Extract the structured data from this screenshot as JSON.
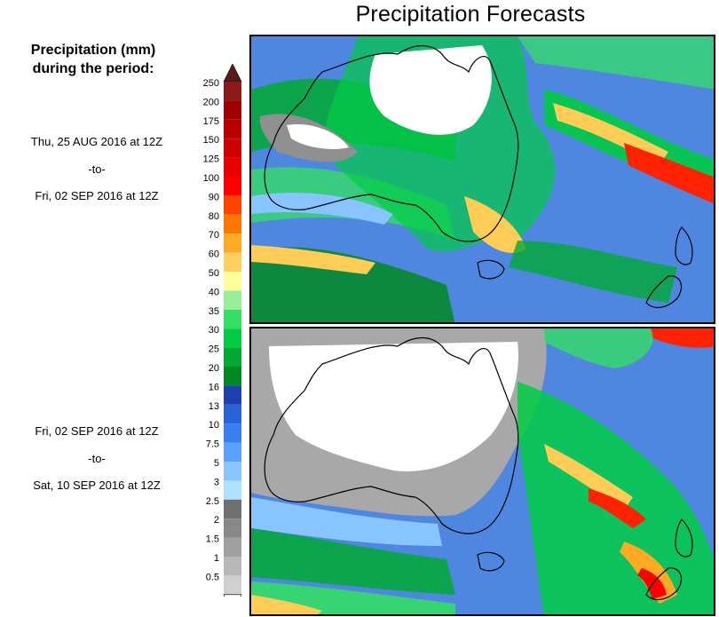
{
  "title": "Precipitation Forecasts",
  "legend": {
    "heading_line1": "Precipitation (mm)",
    "heading_line2": "during the period:",
    "levels": [
      {
        "label": "250",
        "color": "#8b1a1a"
      },
      {
        "label": "200",
        "color": "#a00000"
      },
      {
        "label": "175",
        "color": "#b80000"
      },
      {
        "label": "150",
        "color": "#d00000"
      },
      {
        "label": "125",
        "color": "#e80000"
      },
      {
        "label": "100",
        "color": "#ff0000"
      },
      {
        "label": "90",
        "color": "#ff4400"
      },
      {
        "label": "80",
        "color": "#ff7700"
      },
      {
        "label": "70",
        "color": "#ffaa22"
      },
      {
        "label": "60",
        "color": "#ffd060"
      },
      {
        "label": "50",
        "color": "#ffff99"
      },
      {
        "label": "40",
        "color": "#99ee99"
      },
      {
        "label": "35",
        "color": "#33dd66"
      },
      {
        "label": "30",
        "color": "#00cc44"
      },
      {
        "label": "25",
        "color": "#00aa33"
      },
      {
        "label": "20",
        "color": "#008822"
      },
      {
        "label": "16",
        "color": "#1d3fb0"
      },
      {
        "label": "13",
        "color": "#2a62d8"
      },
      {
        "label": "10",
        "color": "#3a7ff0"
      },
      {
        "label": "7.5",
        "color": "#5aa0ff"
      },
      {
        "label": "5",
        "color": "#88c4ff"
      },
      {
        "label": "3",
        "color": "#aee0ff"
      },
      {
        "label": "2.5",
        "color": "#707070"
      },
      {
        "label": "2",
        "color": "#888888"
      },
      {
        "label": "1.5",
        "color": "#a0a0a0"
      },
      {
        "label": "1",
        "color": "#b8b8b8"
      },
      {
        "label": "0.5",
        "color": "#d0d0d0"
      }
    ],
    "top_cap_color": "#5a1a1a",
    "bottom_cap_color": "#ffffff"
  },
  "periods": [
    {
      "start": "Thu, 25 AUG 2016 at 12Z",
      "to": "-to-",
      "end": "Fri, 02 SEP 2016 at 12Z"
    },
    {
      "start": "Fri, 02 SEP 2016 at 12Z",
      "to": "-to-",
      "end": "Sat, 10 SEP 2016 at 12Z"
    }
  ]
}
